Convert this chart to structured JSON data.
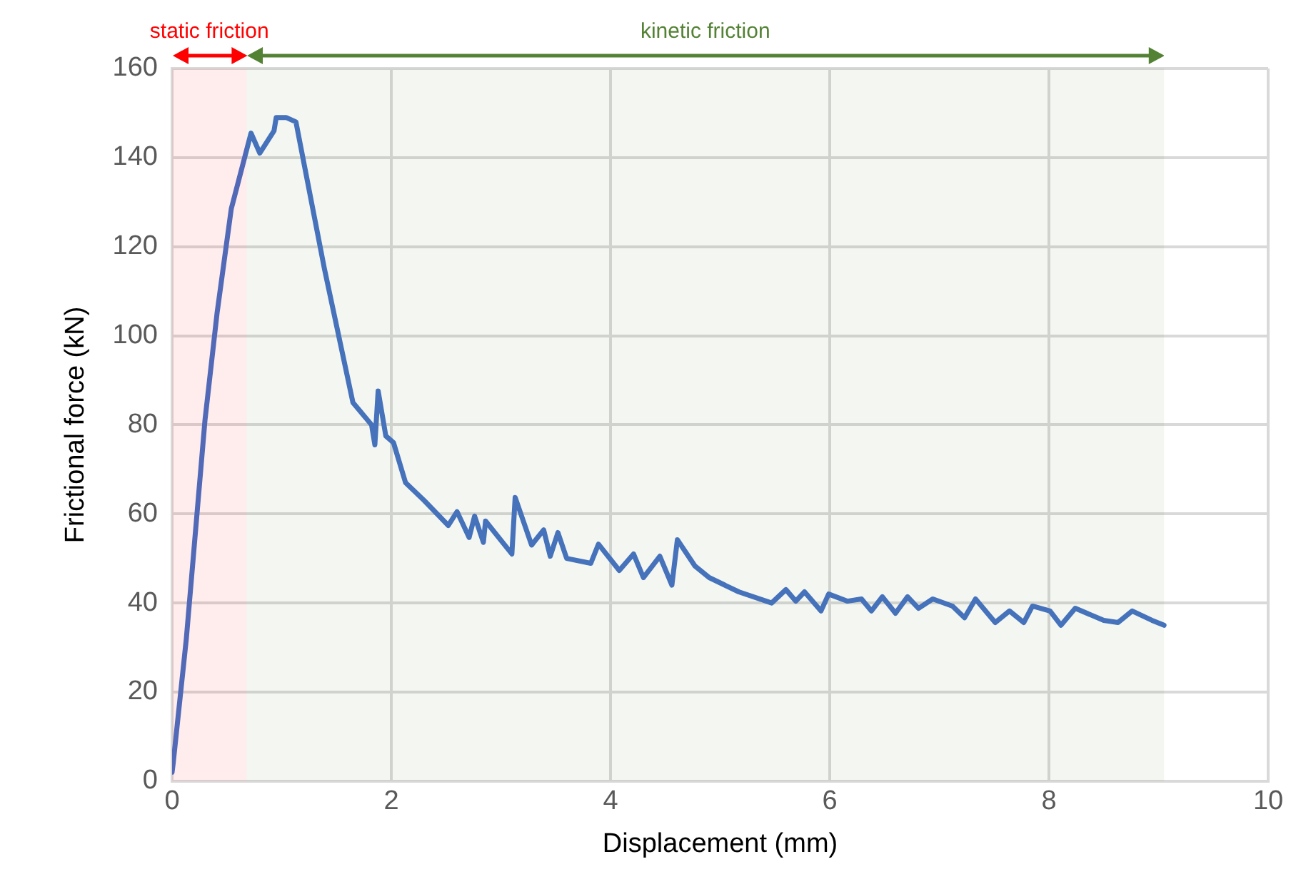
{
  "chart_data": {
    "type": "line",
    "xlabel": "Displacement (mm)",
    "ylabel": "Frictional force (kN)",
    "xlim": [
      0,
      10
    ],
    "xticks": [
      0,
      2,
      4,
      6,
      8,
      10
    ],
    "ylim": [
      0,
      160
    ],
    "yticks": [
      0,
      20,
      40,
      60,
      80,
      100,
      120,
      140,
      160
    ],
    "grid": true,
    "legend": false,
    "marker": "none",
    "line_style": "solid",
    "bands": [
      {
        "axis": "x",
        "from": 0,
        "to": 0.68,
        "label": "static friction",
        "color": "#ff0000"
      },
      {
        "axis": "x",
        "from": 0.68,
        "to": 9.05,
        "label": "kinetic friction",
        "color": "#548235"
      }
    ],
    "series": [
      {
        "color": "#4472c4",
        "x": [
          0,
          0.01,
          0.13,
          0.3,
          0.41,
          0.54,
          0.72,
          0.8,
          0.93,
          0.95,
          1.04,
          1.13,
          1.39,
          1.65,
          1.82,
          1.85,
          1.88,
          1.95,
          2.02,
          2.13,
          2.3,
          2.52,
          2.6,
          2.71,
          2.76,
          2.84,
          2.86,
          3.1,
          3.13,
          3.28,
          3.39,
          3.45,
          3.52,
          3.6,
          3.82,
          3.89,
          4.08,
          4.21,
          4.3,
          4.45,
          4.56,
          4.61,
          4.77,
          4.9,
          5.17,
          5.47,
          5.6,
          5.69,
          5.77,
          5.92,
          5.99,
          6.16,
          6.29,
          6.38,
          6.48,
          6.6,
          6.71,
          6.81,
          6.94,
          7.12,
          7.23,
          7.33,
          7.51,
          7.64,
          7.77,
          7.85,
          8.01,
          8.11,
          8.24,
          8.5,
          8.63,
          8.76,
          8.94,
          9.05
        ],
        "values": [
          2,
          4,
          32,
          81,
          105,
          128.5,
          145.5,
          141,
          146,
          149,
          149,
          148,
          115,
          85,
          80,
          75.5,
          87.6,
          77.5,
          76,
          67,
          63,
          57.4,
          60.5,
          54.7,
          59.5,
          53.6,
          58.4,
          51,
          63.7,
          53,
          56.4,
          50.5,
          55.8,
          50,
          48.9,
          53.2,
          47.3,
          51,
          45.7,
          50.5,
          44,
          54.2,
          48.3,
          45.7,
          42.5,
          40,
          43,
          40.4,
          42.5,
          38.2,
          42,
          40.4,
          40.9,
          38.2,
          41.4,
          37.7,
          41.4,
          38.8,
          40.9,
          39.3,
          36.7,
          40.9,
          35.6,
          38.2,
          35.6,
          39.3,
          38.2,
          35,
          38.8,
          36.1,
          35.6,
          38.2,
          36.1,
          35
        ]
      }
    ]
  }
}
